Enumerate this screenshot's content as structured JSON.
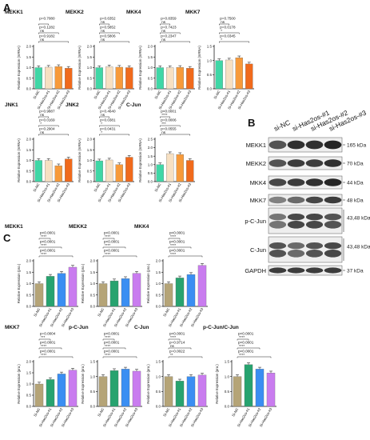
{
  "panels": {
    "A": "A",
    "B": "B",
    "C": "C"
  },
  "colors": {
    "A": [
      "#3fd7a6",
      "#f7e0c2",
      "#f79a3a",
      "#f06a1c"
    ],
    "C": [
      "#b5a477",
      "#27a36f",
      "#3a8ef2",
      "#c97cef"
    ]
  },
  "chart_data": [
    {
      "id": "A-MEKK1",
      "type": "bar",
      "title": "MEKK1",
      "ylabel": "Relative Expression (mRNA)",
      "ylim": [
        0,
        2.0
      ],
      "yticks": [
        "0.0",
        "0.5",
        "1.0",
        "1.5",
        "2.0"
      ],
      "categories": [
        "Si-NC",
        "Si-Has2os-#1",
        "Si-Has2os-#2",
        "Si-Has2os-#3"
      ],
      "values": [
        1.0,
        1.02,
        1.05,
        0.97
      ],
      "comparisons": [
        {
          "pair": [
            1,
            2
          ],
          "p": "p=0.7080"
        },
        {
          "pair": [
            1,
            3
          ],
          "p": "p=0.1282",
          "sig": "ns"
        },
        {
          "pair": [
            1,
            4
          ],
          "p": "p=0.9182",
          "sig": "ns"
        }
      ]
    },
    {
      "id": "A-MEKK2",
      "type": "bar",
      "title": "MEKK2",
      "ylabel": "Relative Expression (mRNA)",
      "ylim": [
        0,
        2.0
      ],
      "yticks": [
        "0.0",
        "0.5",
        "1.0",
        "1.5",
        "2.0"
      ],
      "categories": [
        "Si-NC",
        "Si-Has2os-#1",
        "Si-Has2os-#2",
        "Si-Has2os-#3"
      ],
      "values": [
        1.0,
        1.04,
        1.02,
        1.0
      ],
      "comparisons": [
        {
          "pair": [
            1,
            2
          ],
          "p": "p=0.6352",
          "sig": "ns"
        },
        {
          "pair": [
            1,
            3
          ],
          "p": "p=0.5852",
          "sig": "ns"
        },
        {
          "pair": [
            1,
            4
          ],
          "p": "p=0.5806",
          "sig": "ns"
        }
      ]
    },
    {
      "id": "A-MKK4",
      "type": "bar",
      "title": "MKK4",
      "ylabel": "Relative Expression (mRNA)",
      "ylim": [
        0,
        2.0
      ],
      "yticks": [
        "0.0",
        "0.5",
        "1.0",
        "1.5",
        "2.0"
      ],
      "categories": [
        "Si-NC",
        "Si-Has2os-#1",
        "Si-Has2os-#2",
        "Si-Has2os-#3"
      ],
      "values": [
        1.0,
        1.0,
        1.01,
        0.97
      ],
      "comparisons": [
        {
          "pair": [
            1,
            2
          ],
          "p": "p=0.8359",
          "sig": "ns"
        },
        {
          "pair": [
            1,
            3
          ],
          "p": "p=0.7423",
          "sig": "ns"
        },
        {
          "pair": [
            1,
            4
          ],
          "p": "p=0.2347",
          "sig": "ns"
        }
      ]
    },
    {
      "id": "A-MKK7",
      "type": "bar",
      "title": "MKK7",
      "ylabel": "Relative Expression (mRNA)",
      "ylim": [
        0,
        1.5
      ],
      "yticks": [
        "0.0",
        "0.5",
        "1.0",
        "1.5"
      ],
      "categories": [
        "Si-NC",
        "Si-Has2os-#1",
        "Si-Has2os-#2",
        "Si-Has2os-#3"
      ],
      "values": [
        1.0,
        1.02,
        1.1,
        0.88
      ],
      "comparisons": [
        {
          "pair": [
            1,
            2
          ],
          "p": "p=0.7500",
          "sig": "ns"
        },
        {
          "pair": [
            1,
            3
          ],
          "p": "p=0.0178",
          "sig": "*"
        },
        {
          "pair": [
            1,
            4
          ],
          "p": "p=0.0345",
          "sig": "*"
        }
      ]
    },
    {
      "id": "A-JNK1",
      "type": "bar",
      "title": "JNK1",
      "ylabel": "Relative Expression (mRNA)",
      "ylim": [
        0,
        2.0
      ],
      "yticks": [
        "0.0",
        "0.5",
        "1.0",
        "1.5",
        "2.0"
      ],
      "categories": [
        "Si-NC",
        "Si-Has2os-#1",
        "Si-Has2os-#2",
        "Si-Has2os-#3"
      ],
      "values": [
        1.0,
        1.0,
        0.75,
        1.07
      ],
      "comparisons": [
        {
          "pair": [
            1,
            2
          ],
          "p": "p=0.9887",
          "sig": "ns"
        },
        {
          "pair": [
            1,
            3
          ],
          "p": "p=0.0169",
          "sig": "*"
        },
        {
          "pair": [
            1,
            4
          ],
          "p": "p=0.2904",
          "sig": "ns"
        }
      ]
    },
    {
      "id": "A-JNK2",
      "type": "bar",
      "title": "JNK2",
      "ylabel": "Relative Expression (mRNA)",
      "ylim": [
        0,
        2.0
      ],
      "yticks": [
        "0.0",
        "0.5",
        "1.0",
        "1.5",
        "2.0"
      ],
      "categories": [
        "Si-NC",
        "Si-Has2os-#1",
        "Si-Has2os-#2",
        "Si-Has2os-#3"
      ],
      "values": [
        0.98,
        1.02,
        0.8,
        1.15
      ],
      "comparisons": [
        {
          "pair": [
            1,
            2
          ],
          "p": "p=0.4640",
          "sig": "ns"
        },
        {
          "pair": [
            1,
            3
          ],
          "p": "p=0.0381",
          "sig": "*"
        },
        {
          "pair": [
            1,
            4
          ],
          "p": "p=0.0431",
          "sig": "*"
        }
      ]
    },
    {
      "id": "A-CJun",
      "type": "bar",
      "title": "C-Jun",
      "ylabel": "Relative Expression (mRNA)",
      "ylim": [
        0,
        2.5
      ],
      "yticks": [
        "0.0",
        "0.5",
        "1.0",
        "1.5",
        "2.0",
        "2.5"
      ],
      "categories": [
        "Si-NC",
        "Si-Has2os-#1",
        "Si-Has2os-#2",
        "Si-Has2os-#3"
      ],
      "values": [
        1.0,
        1.65,
        1.6,
        1.25
      ],
      "comparisons": [
        {
          "pair": [
            1,
            2
          ],
          "p": "p<0.0001",
          "sig": "****"
        },
        {
          "pair": [
            1,
            3
          ],
          "p": "p=0.0006",
          "sig": "***"
        },
        {
          "pair": [
            1,
            4
          ],
          "p": "p=0.0555",
          "sig": "ns"
        }
      ]
    },
    {
      "id": "C-MEKK1",
      "type": "bar",
      "title": "MEKK1",
      "ylabel": "Relative Expression (pro.)",
      "ylim": [
        0,
        2.0
      ],
      "yticks": [
        "0.0",
        "0.5",
        "1.0",
        "1.5",
        "2.0"
      ],
      "categories": [
        "Si-NC",
        "Si-Has2os-#1",
        "Si-Has2os-#2",
        "Si-Has2os-#3"
      ],
      "values": [
        1.0,
        1.32,
        1.45,
        1.72
      ],
      "comparisons": [
        {
          "pair": [
            1,
            2
          ],
          "p": "p<0.0001",
          "sig": "****"
        },
        {
          "pair": [
            1,
            3
          ],
          "p": "p<0.0001",
          "sig": "****"
        },
        {
          "pair": [
            1,
            4
          ],
          "p": "p<0.0001",
          "sig": "****"
        }
      ]
    },
    {
      "id": "C-MEKK2",
      "type": "bar",
      "title": "MEKK2",
      "ylabel": "Relative Expression (pro.)",
      "ylim": [
        0,
        2.0
      ],
      "yticks": [
        "0.0",
        "0.5",
        "1.0",
        "1.5",
        "2.0"
      ],
      "categories": [
        "Si-NC",
        "Si-Has2os-#1",
        "Si-Has2os-#2",
        "Si-Has2os-#3"
      ],
      "values": [
        1.0,
        1.12,
        1.22,
        1.45
      ],
      "comparisons": [
        {
          "pair": [
            1,
            2
          ],
          "p": "p<0.0001",
          "sig": "****"
        },
        {
          "pair": [
            1,
            3
          ],
          "p": "p<0.0001",
          "sig": "****"
        },
        {
          "pair": [
            1,
            4
          ],
          "p": "p<0.0001",
          "sig": "****"
        }
      ]
    },
    {
      "id": "C-MKK4",
      "type": "bar",
      "title": "MKK4",
      "ylabel": "Relative Expression (pro.)",
      "ylim": [
        0,
        2.0
      ],
      "yticks": [
        "0.0",
        "0.5",
        "1.0",
        "1.5",
        "2.0"
      ],
      "categories": [
        "Si-NC",
        "Si-Has2os-#1",
        "Si-Has2os-#2",
        "Si-Has2os-#3"
      ],
      "values": [
        1.0,
        1.25,
        1.4,
        1.8
      ],
      "comparisons": [
        {
          "pair": [
            1,
            2
          ],
          "p": "p<0.0001",
          "sig": "****"
        },
        {
          "pair": [
            1,
            3
          ],
          "p": "p<0.0001",
          "sig": "****"
        },
        {
          "pair": [
            1,
            4
          ],
          "p": "p<0.0001",
          "sig": "****"
        }
      ]
    },
    {
      "id": "C-MKK7",
      "type": "bar",
      "title": "MKK7",
      "ylabel": "Relative Expression (pro.)",
      "ylim": [
        0,
        2.0
      ],
      "yticks": [
        "0.0",
        "0.5",
        "1.0",
        "1.5",
        "2.0"
      ],
      "categories": [
        "Si-NC",
        "Si-Has2os-#1",
        "Si-Has2os-#2",
        "Si-Has2os-#3"
      ],
      "values": [
        1.0,
        1.2,
        1.45,
        1.62
      ],
      "comparisons": [
        {
          "pair": [
            1,
            2
          ],
          "p": "p=0.0004",
          "sig": "***"
        },
        {
          "pair": [
            1,
            3
          ],
          "p": "p<0.0001",
          "sig": "****"
        },
        {
          "pair": [
            1,
            4
          ],
          "p": "p<0.0001",
          "sig": "****"
        }
      ]
    },
    {
      "id": "C-pCJun",
      "type": "bar",
      "title": "p-C-Jun",
      "ylabel": "Relative Expression (pro.)",
      "ylim": [
        0,
        1.5
      ],
      "yticks": [
        "0.0",
        "0.5",
        "1.0",
        "1.5"
      ],
      "categories": [
        "Si-NC",
        "Si-Has2os-#1",
        "Si-Has2os-#2",
        "Si-Has2os-#3"
      ],
      "values": [
        1.0,
        1.2,
        1.25,
        1.18
      ],
      "comparisons": [
        {
          "pair": [
            1,
            2
          ],
          "p": "p<0.0001",
          "sig": "****"
        },
        {
          "pair": [
            1,
            3
          ],
          "p": "p<0.0001",
          "sig": "****"
        },
        {
          "pair": [
            1,
            4
          ],
          "p": "p<0.0001",
          "sig": "****"
        }
      ]
    },
    {
      "id": "C-CJun",
      "type": "bar",
      "title": "C-Jun",
      "ylabel": "Relative Expression (pro.)",
      "ylim": [
        0,
        1.5
      ],
      "yticks": [
        "0.0",
        "0.5",
        "1.0",
        "1.5"
      ],
      "categories": [
        "Si-NC",
        "Si-Has2os-#1",
        "Si-Has2os-#2",
        "Si-Has2os-#3"
      ],
      "values": [
        1.0,
        0.85,
        1.0,
        1.05
      ],
      "comparisons": [
        {
          "pair": [
            1,
            2
          ],
          "p": "p<0.0001",
          "sig": "****"
        },
        {
          "pair": [
            1,
            3
          ],
          "p": "p=0.9714",
          "sig": "ns"
        },
        {
          "pair": [
            1,
            4
          ],
          "p": "p=0.0022",
          "sig": "**"
        }
      ]
    },
    {
      "id": "C-pCJun-CJun",
      "type": "bar",
      "title": "p-C-Jun/C-Jun",
      "ylabel": "Relative Expression (pro.)",
      "ylim": [
        0,
        1.5
      ],
      "yticks": [
        "0.0",
        "0.5",
        "1.0",
        "1.5"
      ],
      "categories": [
        "Si-NC",
        "Si-Has2os-#1",
        "Si-Has2os-#2",
        "Si-Has2os-#3"
      ],
      "values": [
        1.0,
        1.4,
        1.25,
        1.12
      ],
      "comparisons": [
        {
          "pair": [
            1,
            2
          ],
          "p": "p<0.0001",
          "sig": "****"
        },
        {
          "pair": [
            1,
            3
          ],
          "p": "p<0.0001",
          "sig": "****"
        },
        {
          "pair": [
            1,
            4
          ],
          "p": "p<0.0001",
          "sig": "****"
        }
      ]
    }
  ],
  "western": {
    "lanes": [
      "si-NC",
      "si-Has2os-#1",
      "si-Has2os-#2",
      "si-Has2os-#3"
    ],
    "rows": [
      {
        "label": "MEKK1",
        "kda": "165 kDa",
        "intensity": [
          0.75,
          0.9,
          0.9,
          0.95
        ]
      },
      {
        "label": "MEKK2",
        "kda": "70 kDa",
        "intensity": [
          0.75,
          0.85,
          0.85,
          0.9
        ]
      },
      {
        "label": "MKK4",
        "kda": "44 kDa",
        "intensity": [
          0.8,
          0.85,
          0.9,
          0.95
        ]
      },
      {
        "label": "MKK7",
        "kda": "48 kDa",
        "intensity": [
          0.55,
          0.65,
          0.8,
          0.85
        ]
      },
      {
        "label": "p-C-Jun",
        "kda": "43,48 kDa",
        "intensity": [
          0.6,
          0.8,
          0.8,
          0.75
        ]
      },
      {
        "label": "C-Jun",
        "kda": "43,48 kDa",
        "intensity": [
          0.75,
          0.65,
          0.75,
          0.8
        ]
      },
      {
        "label": "GAPDH",
        "kda": "37 kDa",
        "intensity": [
          0.85,
          0.85,
          0.85,
          0.85
        ]
      }
    ]
  }
}
